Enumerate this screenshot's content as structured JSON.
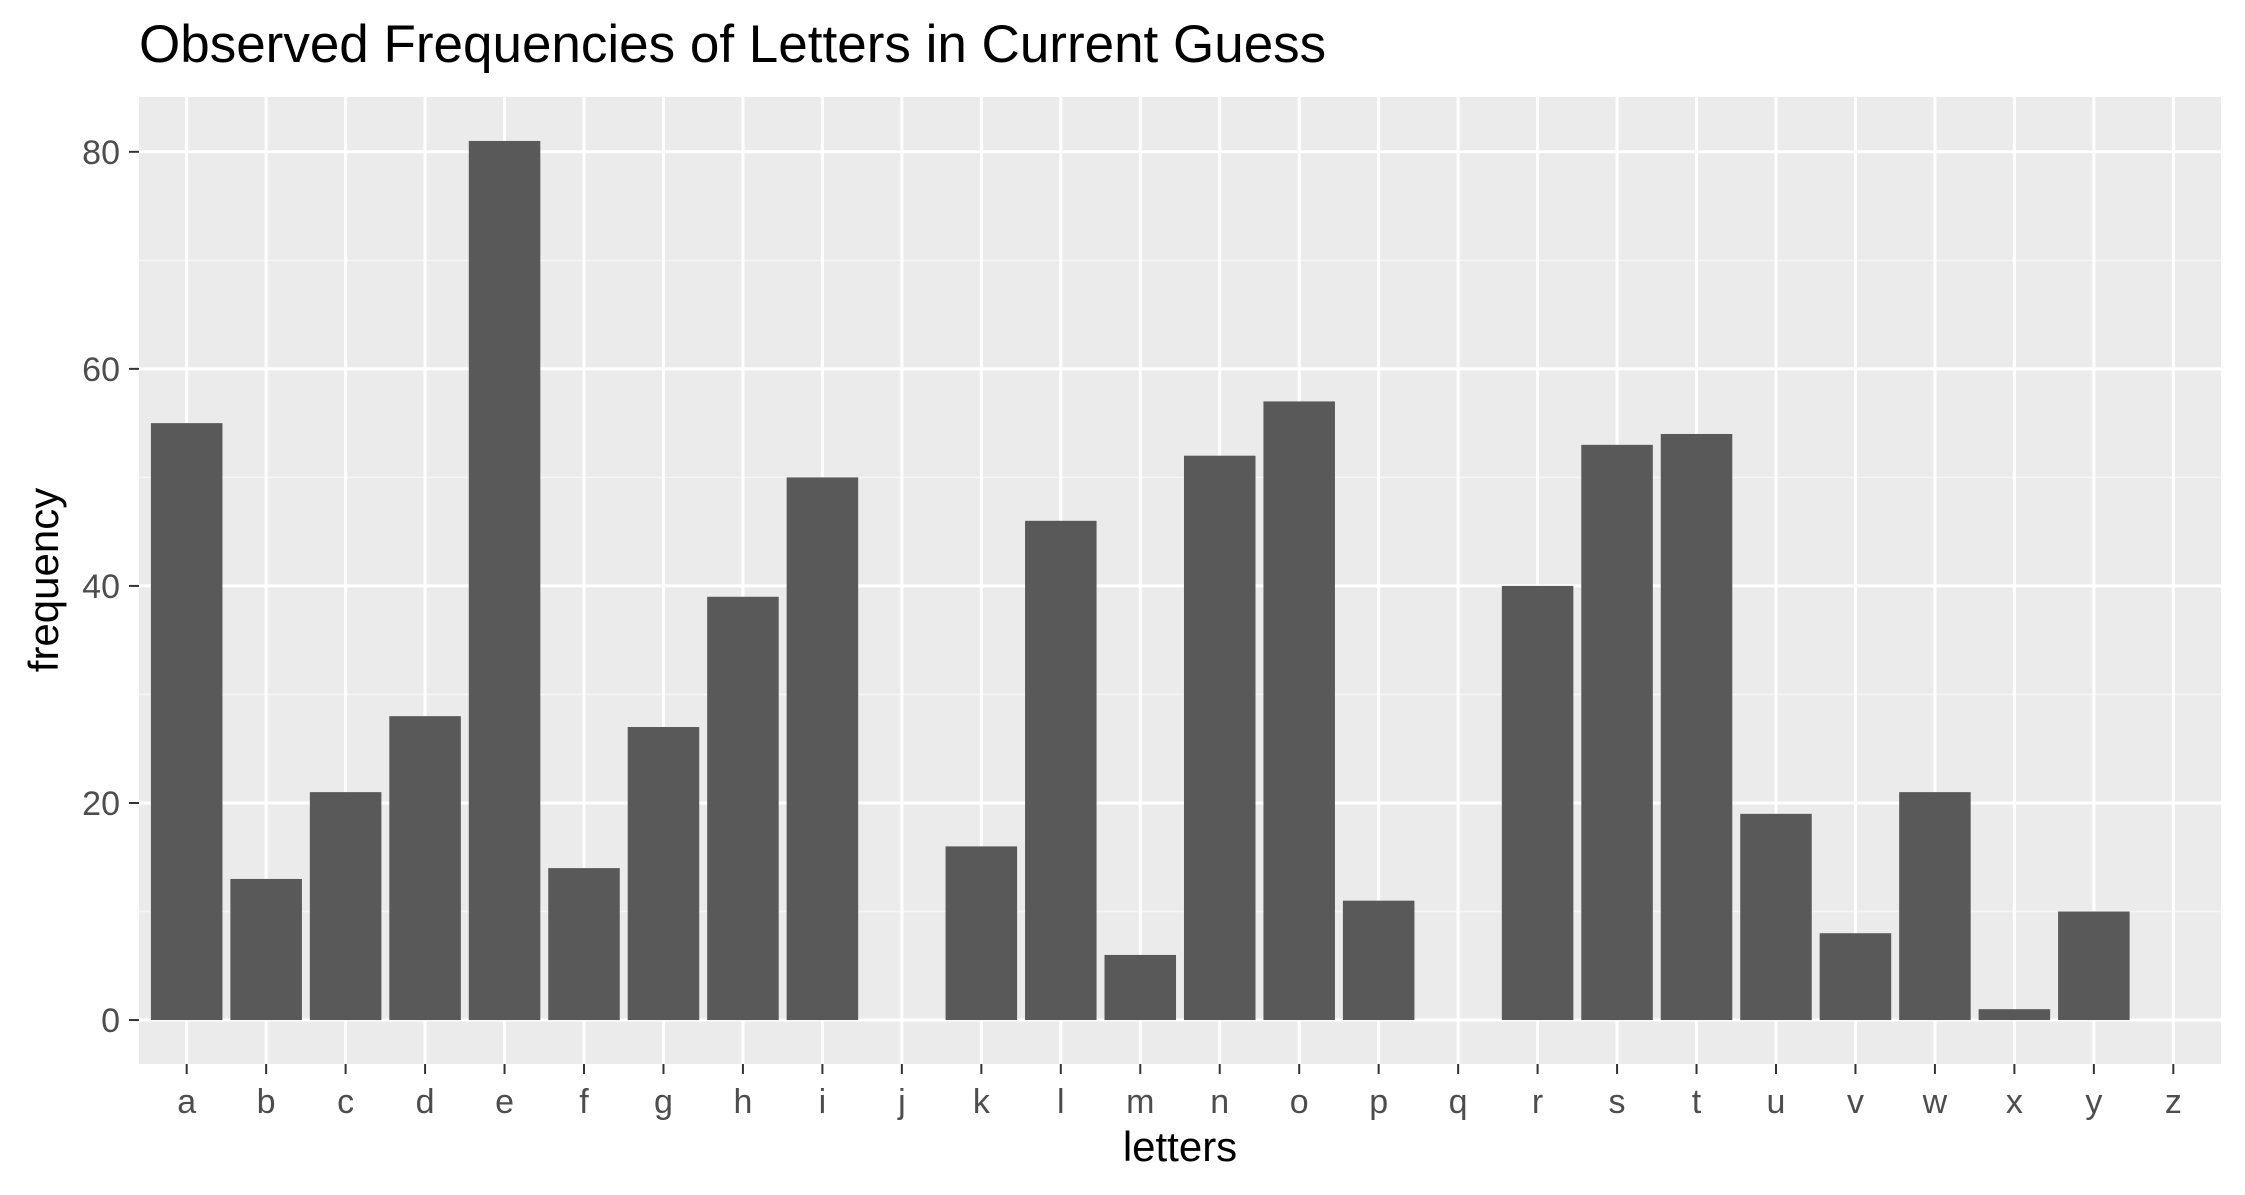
{
  "chart_data": {
    "type": "bar",
    "title": "Observed Frequencies of Letters in Current Guess",
    "xlabel": "letters",
    "ylabel": "frequency",
    "categories": [
      "a",
      "b",
      "c",
      "d",
      "e",
      "f",
      "g",
      "h",
      "i",
      "j",
      "k",
      "l",
      "m",
      "n",
      "o",
      "p",
      "q",
      "r",
      "s",
      "t",
      "u",
      "v",
      "w",
      "x",
      "y",
      "z"
    ],
    "values": [
      55,
      13,
      21,
      28,
      81,
      14,
      27,
      39,
      50,
      0,
      16,
      46,
      6,
      52,
      57,
      11,
      0,
      40,
      53,
      54,
      19,
      8,
      21,
      1,
      10,
      0
    ],
    "yticks": [
      0,
      20,
      40,
      60,
      80
    ],
    "ylim": [
      -4.05,
      85.05
    ],
    "grid": true,
    "legend": "none",
    "colors": {
      "bar": "#595959",
      "panel_background": "#ebebeb",
      "grid_major": "#ffffff",
      "grid_minor": "#f5f5f5",
      "tick_text": "#4d4d4d",
      "tick_mark": "#333333"
    }
  }
}
